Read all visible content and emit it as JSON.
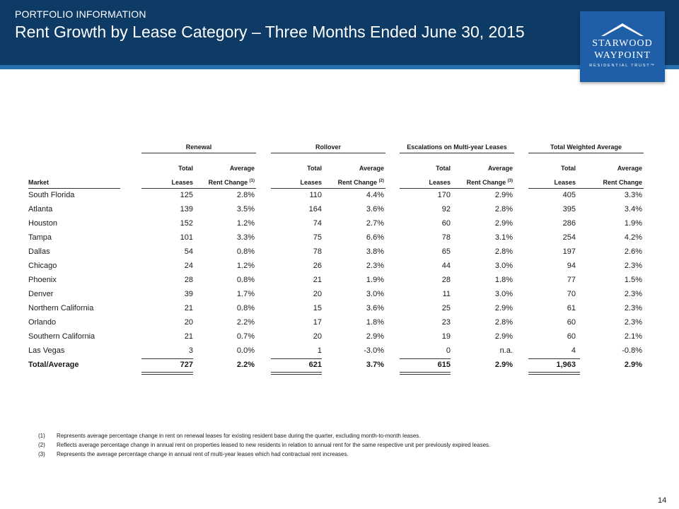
{
  "header": {
    "kicker": "PORTFOLIO INFORMATION",
    "title": "Rent Growth by Lease Category – Three Months Ended June 30, 2015"
  },
  "logo": {
    "line1": "STARWOOD",
    "line2": "WAYPOINT",
    "line3": "RESIDENTIAL TRUST™"
  },
  "table": {
    "groups": [
      "Renewal",
      "Rollover",
      "Escalations on Multi-year Leases",
      "Total Weighted Average"
    ],
    "col_top": [
      "Total",
      "Average",
      "Total",
      "Average",
      "Total",
      "Average",
      "Total",
      "Average"
    ],
    "col_bottom": [
      "Leases",
      "Rent Change",
      "Leases",
      "Rent Change",
      "Leases",
      "Rent Change",
      "Leases",
      "Rent Change"
    ],
    "col_notes": [
      "",
      "(1)",
      "",
      "(2)",
      "",
      "(3)",
      "",
      ""
    ],
    "market_header": "Market",
    "rows": [
      {
        "market": "South Florida",
        "values": [
          "125",
          "2.8%",
          "110",
          "4.4%",
          "170",
          "2.9%",
          "405",
          "3.3%"
        ]
      },
      {
        "market": "Atlanta",
        "values": [
          "139",
          "3.5%",
          "164",
          "3.6%",
          "92",
          "2.8%",
          "395",
          "3.4%"
        ]
      },
      {
        "market": "Houston",
        "values": [
          "152",
          "1.2%",
          "74",
          "2.7%",
          "60",
          "2.9%",
          "286",
          "1.9%"
        ]
      },
      {
        "market": "Tampa",
        "values": [
          "101",
          "3.3%",
          "75",
          "6.6%",
          "78",
          "3.1%",
          "254",
          "4.2%"
        ]
      },
      {
        "market": "Dallas",
        "values": [
          "54",
          "0.8%",
          "78",
          "3.8%",
          "65",
          "2.8%",
          "197",
          "2.6%"
        ]
      },
      {
        "market": "Chicago",
        "values": [
          "24",
          "1.2%",
          "26",
          "2.3%",
          "44",
          "3.0%",
          "94",
          "2.3%"
        ]
      },
      {
        "market": "Phoenix",
        "values": [
          "28",
          "0.8%",
          "21",
          "1.9%",
          "28",
          "1.8%",
          "77",
          "1.5%"
        ]
      },
      {
        "market": "Denver",
        "values": [
          "39",
          "1.7%",
          "20",
          "3.0%",
          "11",
          "3.0%",
          "70",
          "2.3%"
        ]
      },
      {
        "market": "Northern California",
        "values": [
          "21",
          "0.8%",
          "15",
          "3.6%",
          "25",
          "2.9%",
          "61",
          "2.3%"
        ]
      },
      {
        "market": "Orlando",
        "values": [
          "20",
          "2.2%",
          "17",
          "1.8%",
          "23",
          "2.8%",
          "60",
          "2.3%"
        ]
      },
      {
        "market": "Southern California",
        "values": [
          "21",
          "0.7%",
          "20",
          "2.9%",
          "19",
          "2.9%",
          "60",
          "2.1%"
        ]
      },
      {
        "market": "Las Vegas",
        "values": [
          "3",
          "0.0%",
          "1",
          "-3.0%",
          "0",
          "n.a.",
          "4",
          "-0.8%"
        ]
      }
    ],
    "total": {
      "market": "Total/Average",
      "values": [
        "727",
        "2.2%",
        "621",
        "3.7%",
        "615",
        "2.9%",
        "1,963",
        "2.9%"
      ]
    }
  },
  "footnotes": [
    {
      "num": "(1)",
      "text": "Represents average percentage change in rent on renewal leases for existing resident base during the quarter, excluding month-to-month leases."
    },
    {
      "num": "(2)",
      "text": "Reflects average percentage change in annual rent on properties leased to new residents in relation to annual rent for the same respective unit per previously expired leases."
    },
    {
      "num": "(3)",
      "text": "Represents the average percentage change in annual rent of multi-year leases which had contractual rent increases."
    }
  ],
  "page_number": "14"
}
